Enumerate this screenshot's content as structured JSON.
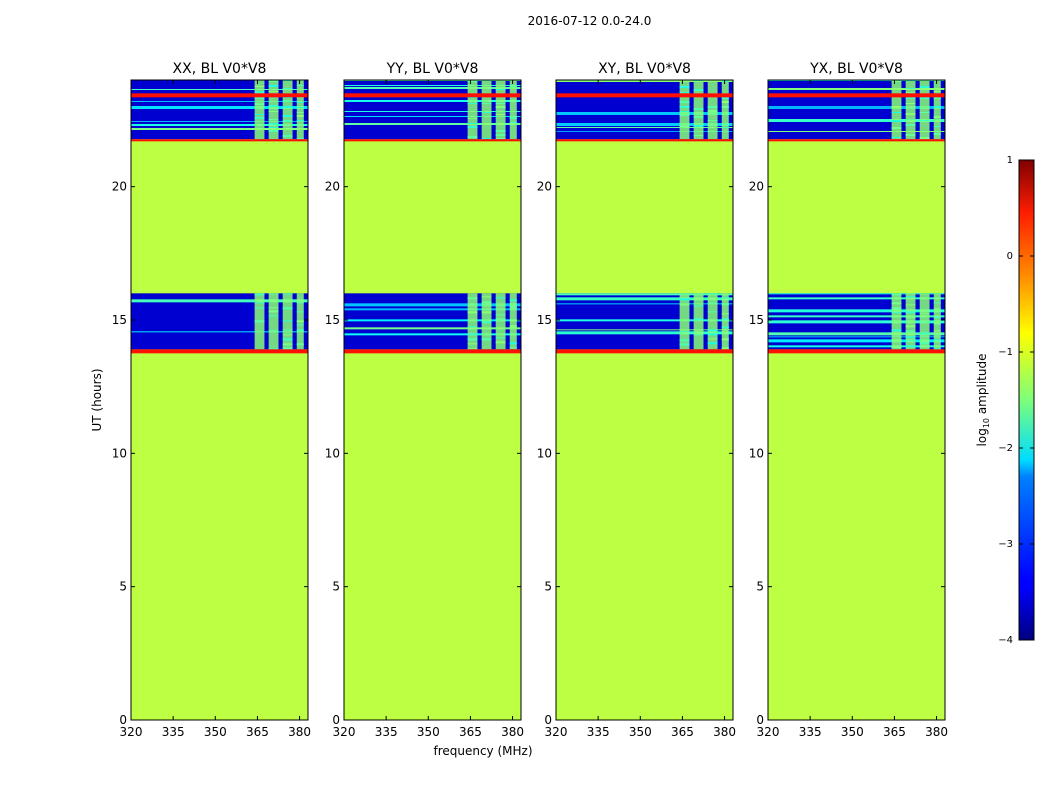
{
  "figure": {
    "title": "2016-07-12 0.0-24.0",
    "xlabel": "frequency (MHz)",
    "ylabel": "UT (hours)"
  },
  "colorbar": {
    "label_prefix": "log",
    "label_sub": "10",
    "label_suffix": " amplitude",
    "range": [
      -4,
      1
    ],
    "ticks": [
      {
        "value": 1,
        "label": "1"
      },
      {
        "value": 0,
        "label": "0"
      },
      {
        "value": -1,
        "label": "−1"
      },
      {
        "value": -2,
        "label": "−2"
      },
      {
        "value": -3,
        "label": "−3"
      },
      {
        "value": -4,
        "label": "−4"
      }
    ],
    "colormap": "jet"
  },
  "chart_data": [
    {
      "type": "heatmap",
      "title": "XX, BL V0*V8",
      "xlim": [
        320,
        383
      ],
      "ylim": [
        0,
        24
      ],
      "xticks": [
        {
          "value": 320,
          "label": "320"
        },
        {
          "value": 335,
          "label": "335"
        },
        {
          "value": 350,
          "label": "350"
        },
        {
          "value": 365,
          "label": "365"
        },
        {
          "value": 380,
          "label": "380"
        }
      ],
      "yticks": [
        {
          "value": 0,
          "label": "0"
        },
        {
          "value": 5,
          "label": "5"
        },
        {
          "value": 10,
          "label": "10"
        },
        {
          "value": 15,
          "label": "15"
        },
        {
          "value": 20,
          "label": "20"
        }
      ],
      "background_value": -1.2,
      "flagged_rows": [
        {
          "t0": 13.75,
          "t1": 13.9,
          "value": 0.3
        },
        {
          "t0": 21.7,
          "t1": 21.78,
          "value": 0.3
        },
        {
          "t0": 23.35,
          "t1": 23.5,
          "value": 0.3
        }
      ],
      "data_blocks": [
        {
          "t0": 13.9,
          "t1": 16.0,
          "value": -3.6
        },
        {
          "t0": 21.78,
          "t1": 24.0,
          "value": -3.6
        }
      ],
      "rfi_freq_bands": [
        [
          364,
          367.5
        ],
        [
          369,
          372.5
        ],
        [
          374,
          377.5
        ],
        [
          379,
          381.5
        ]
      ]
    },
    {
      "type": "heatmap",
      "title": "YY, BL V0*V8",
      "xlim": [
        320,
        383
      ],
      "ylim": [
        0,
        24
      ],
      "xticks": [
        {
          "value": 320,
          "label": "320"
        },
        {
          "value": 335,
          "label": "335"
        },
        {
          "value": 350,
          "label": "350"
        },
        {
          "value": 365,
          "label": "365"
        },
        {
          "value": 380,
          "label": "380"
        }
      ],
      "yticks": [
        {
          "value": 0,
          "label": "0"
        },
        {
          "value": 5,
          "label": "5"
        },
        {
          "value": 10,
          "label": "10"
        },
        {
          "value": 15,
          "label": "15"
        },
        {
          "value": 20,
          "label": "20"
        }
      ],
      "background_value": -1.2,
      "flagged_rows": [
        {
          "t0": 13.75,
          "t1": 13.9,
          "value": 0.3
        },
        {
          "t0": 21.7,
          "t1": 21.78,
          "value": 0.3
        },
        {
          "t0": 23.35,
          "t1": 23.5,
          "value": 0.3
        }
      ],
      "data_blocks": [
        {
          "t0": 13.9,
          "t1": 16.0,
          "value": -3.6
        },
        {
          "t0": 21.78,
          "t1": 24.0,
          "value": -3.6
        }
      ],
      "rfi_freq_bands": [
        [
          364,
          367.5
        ],
        [
          369,
          372.5
        ],
        [
          374,
          377.5
        ],
        [
          379,
          381.5
        ]
      ]
    },
    {
      "type": "heatmap",
      "title": "XY, BL V0*V8",
      "xlim": [
        320,
        383
      ],
      "ylim": [
        0,
        24
      ],
      "xticks": [
        {
          "value": 320,
          "label": "320"
        },
        {
          "value": 335,
          "label": "335"
        },
        {
          "value": 350,
          "label": "350"
        },
        {
          "value": 365,
          "label": "365"
        },
        {
          "value": 380,
          "label": "380"
        }
      ],
      "yticks": [
        {
          "value": 0,
          "label": "0"
        },
        {
          "value": 5,
          "label": "5"
        },
        {
          "value": 10,
          "label": "10"
        },
        {
          "value": 15,
          "label": "15"
        },
        {
          "value": 20,
          "label": "20"
        }
      ],
      "background_value": -1.2,
      "flagged_rows": [
        {
          "t0": 13.75,
          "t1": 13.9,
          "value": 0.3
        },
        {
          "t0": 21.7,
          "t1": 21.78,
          "value": 0.3
        },
        {
          "t0": 23.35,
          "t1": 23.5,
          "value": 0.3
        }
      ],
      "data_blocks": [
        {
          "t0": 13.9,
          "t1": 16.0,
          "value": -3.6
        },
        {
          "t0": 21.78,
          "t1": 24.0,
          "value": -3.6
        }
      ],
      "rfi_freq_bands": [
        [
          364,
          367.5
        ],
        [
          369,
          372.5
        ],
        [
          374,
          377.5
        ],
        [
          379,
          381.5
        ]
      ]
    },
    {
      "type": "heatmap",
      "title": "YX, BL V0*V8",
      "xlim": [
        320,
        383
      ],
      "ylim": [
        0,
        24
      ],
      "xticks": [
        {
          "value": 320,
          "label": "320"
        },
        {
          "value": 335,
          "label": "335"
        },
        {
          "value": 350,
          "label": "350"
        },
        {
          "value": 365,
          "label": "365"
        },
        {
          "value": 380,
          "label": "380"
        }
      ],
      "yticks": [
        {
          "value": 0,
          "label": "0"
        },
        {
          "value": 5,
          "label": "5"
        },
        {
          "value": 10,
          "label": "10"
        },
        {
          "value": 15,
          "label": "15"
        },
        {
          "value": 20,
          "label": "20"
        }
      ],
      "background_value": -1.2,
      "flagged_rows": [
        {
          "t0": 13.75,
          "t1": 13.9,
          "value": 0.3
        },
        {
          "t0": 21.7,
          "t1": 21.78,
          "value": 0.3
        },
        {
          "t0": 23.35,
          "t1": 23.5,
          "value": 0.3
        }
      ],
      "data_blocks": [
        {
          "t0": 13.9,
          "t1": 16.0,
          "value": -3.6
        },
        {
          "t0": 21.78,
          "t1": 24.0,
          "value": -3.6
        }
      ],
      "rfi_freq_bands": [
        [
          364,
          367.5
        ],
        [
          369,
          372.5
        ],
        [
          374,
          377.5
        ],
        [
          379,
          381.5
        ]
      ]
    }
  ]
}
